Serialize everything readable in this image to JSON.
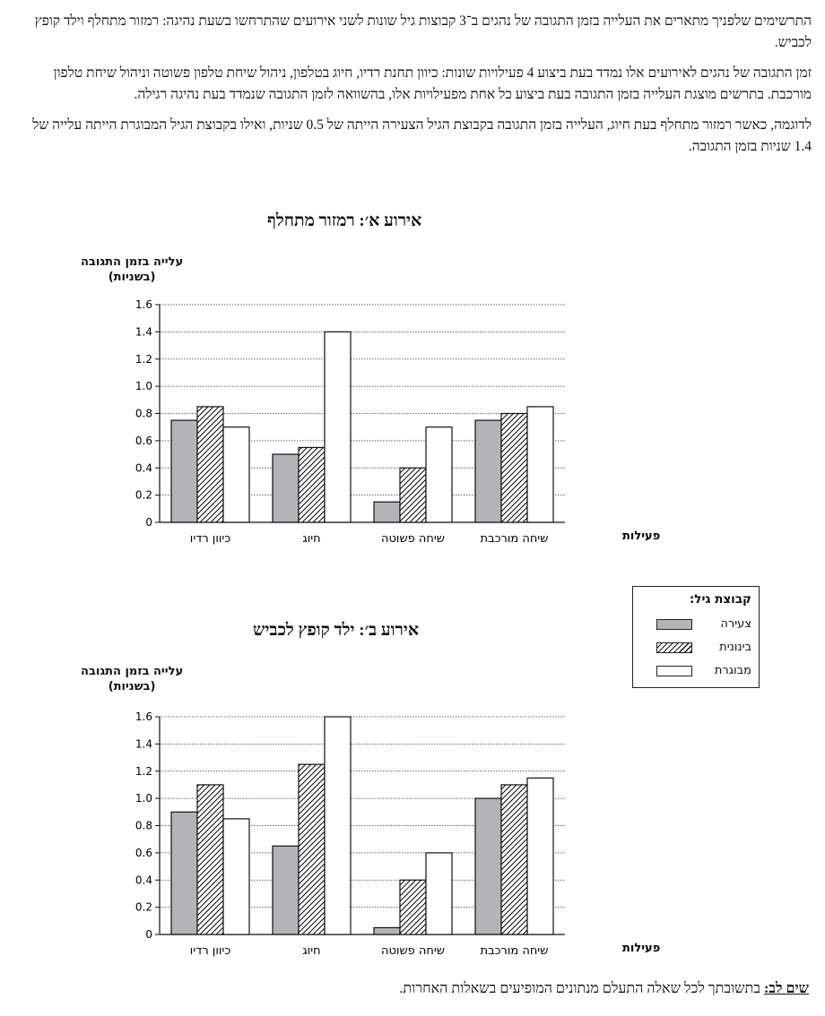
{
  "intro": {
    "paragraph1": "התרשימים שלפניך מתארים את העלייה בזמן התגובה של נהגים ב־3 קבוצות גיל שונות לשני אירועים שהתרחשו בשעת נהיגה: רמזור מתחלף וילד קופץ לכביש.",
    "paragraph2": "זמן התגובה של נהגים לאירועים אלו נמדד בעת ביצוע 4 פעילויות שונות: כיוון תחנת רדיו, חיוג בטלפון, ניהול שיחת טלפון פשוטה וניהול שיחת טלפון מורכבת. בתרשים מוצגת העלייה בזמן התגובה בעת ביצוע כל אחת מפעילויות אלו, בהשוואה לזמן התגובה שנמדד בעת נהיגה רגילה.",
    "paragraph3": "לדוגמה, כאשר רמזור מתחלף בעת חיוג, העלייה בזמן התגובה בקבוצת הגיל הצעירה הייתה של 0.5 שניות, ואילו בקבוצת הגיל המבוגרת הייתה עלייה של 1.4 שניות בזמן התגובה."
  },
  "legend": {
    "title": "קבוצת גיל:",
    "items": [
      "צעירה",
      "בינונית",
      "מבוגרת"
    ]
  },
  "note": {
    "label": "שים לב:",
    "text": " בתשובתך לכל שאלה התעלם מנתונים המופיעים בשאלות האחרות."
  },
  "colors": {
    "young": "#b4b4b8",
    "hatch": "#111111",
    "old": "#ffffff",
    "grid": "#333333"
  },
  "chart_data": [
    {
      "type": "bar",
      "title": "אירוע א׳: רמזור מתחלף",
      "ylabel_line1": "עלייה בזמן התגובה",
      "ylabel_line2": "(בשניות)",
      "xlabel": "פעילות",
      "ylim": [
        0,
        1.6
      ],
      "yticks": [
        "0",
        "0.2",
        "0.4",
        "0.6",
        "0.8",
        "1.0",
        "1.2",
        "1.4",
        "1.6"
      ],
      "grid": true,
      "categories": [
        "כיוון רדיו",
        "חיוג",
        "שיחה פשוטה",
        "שיחה מורכבת"
      ],
      "series": [
        {
          "name": "צעירה",
          "values": [
            0.75,
            0.5,
            0.15,
            0.75
          ]
        },
        {
          "name": "בינונית",
          "values": [
            0.85,
            0.55,
            0.4,
            0.8
          ]
        },
        {
          "name": "מבוגרת",
          "values": [
            0.7,
            1.4,
            0.7,
            0.85
          ]
        }
      ]
    },
    {
      "type": "bar",
      "title": "אירוע ב׳: ילד קופץ לכביש",
      "ylabel_line1": "עלייה בזמן התגובה",
      "ylabel_line2": "(בשניות)",
      "xlabel": "פעילות",
      "ylim": [
        0,
        1.6
      ],
      "yticks": [
        "0",
        "0.2",
        "0.4",
        "0.6",
        "0.8",
        "1.0",
        "1.2",
        "1.4",
        "1.6"
      ],
      "grid": true,
      "categories": [
        "כיוון רדיו",
        "חיוג",
        "שיחה פשוטה",
        "שיחה מורכבת"
      ],
      "series": [
        {
          "name": "צעירה",
          "values": [
            0.9,
            0.65,
            0.05,
            1.0
          ]
        },
        {
          "name": "בינונית",
          "values": [
            1.1,
            1.25,
            0.4,
            1.1
          ]
        },
        {
          "name": "מבוגרת",
          "values": [
            0.85,
            1.6,
            0.6,
            1.15
          ]
        }
      ]
    }
  ]
}
